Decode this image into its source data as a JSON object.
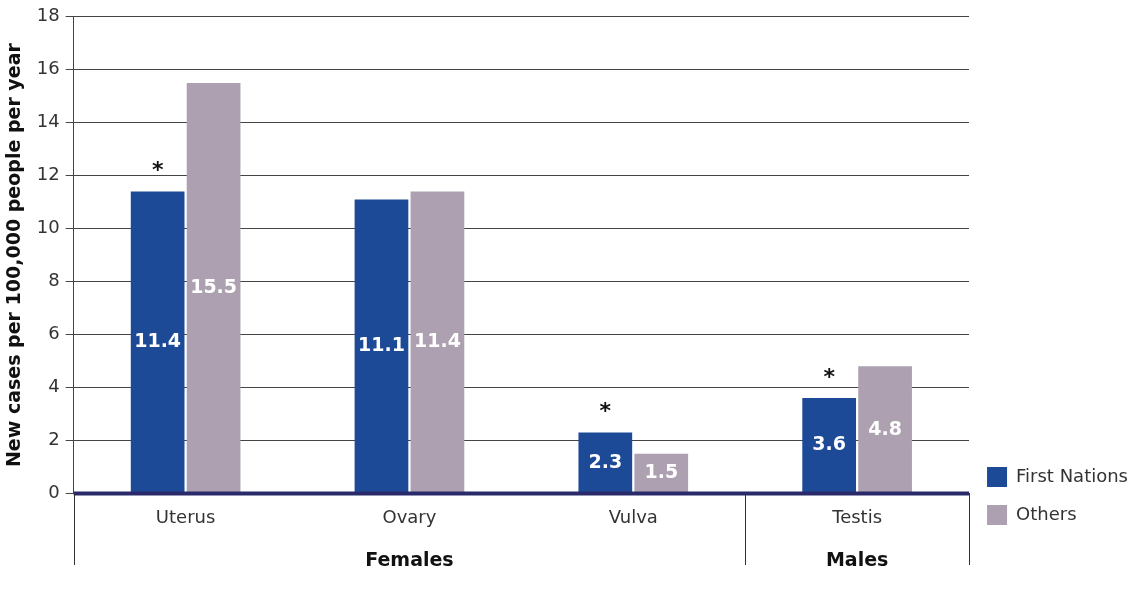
{
  "chart_data": {
    "type": "bar",
    "ylabel": "New cases per 100,000 people per year",
    "categories": [
      "Uterus",
      "Ovary",
      "Vulva",
      "Testis"
    ],
    "series": [
      {
        "name": "First Nations",
        "color": "#1c4a96",
        "values": [
          11.4,
          11.1,
          2.3,
          3.6
        ]
      },
      {
        "name": "Others",
        "color": "#ada1b1",
        "values": [
          15.5,
          11.4,
          1.5,
          4.8
        ]
      }
    ],
    "ylim": [
      0,
      18
    ],
    "yticks": [
      0,
      2,
      4,
      6,
      8,
      10,
      12,
      14,
      16,
      18
    ],
    "grid": "y",
    "legend": "bottom right",
    "data_labels": true,
    "annotations": [
      {
        "text": "*",
        "x": "Uterus",
        "y": 11.4
      },
      {
        "text": "*",
        "x": "Vulva",
        "y": 2.3
      },
      {
        "text": "*",
        "x": "Testis",
        "y": 3.6
      },
      "Females",
      "Males"
    ]
  }
}
